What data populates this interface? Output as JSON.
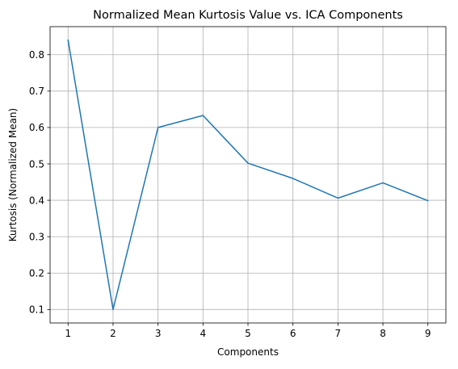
{
  "chart_data": {
    "type": "line",
    "title": "Normalized Mean Kurtosis Value vs. ICA Components",
    "xlabel": "Components",
    "ylabel": "Kurtosis (Normalized Mean)",
    "x": [
      1,
      2,
      3,
      4,
      5,
      6,
      7,
      8,
      9
    ],
    "series": [
      {
        "name": "Normalized Mean Kurtosis",
        "color": "#1f77b4",
        "values": [
          0.84,
          0.1,
          0.6,
          0.633,
          0.502,
          0.46,
          0.406,
          0.448,
          0.399
        ]
      }
    ],
    "xlim": [
      0.6,
      9.4
    ],
    "ylim": [
      0.063,
      0.877
    ],
    "xticks": [
      1,
      2,
      3,
      4,
      5,
      6,
      7,
      8,
      9
    ],
    "xtick_labels": [
      "1",
      "2",
      "3",
      "4",
      "5",
      "6",
      "7",
      "8",
      "9"
    ],
    "yticks": [
      0.1,
      0.2,
      0.3,
      0.4,
      0.5,
      0.6,
      0.7,
      0.8
    ],
    "ytick_labels": [
      "0.1",
      "0.2",
      "0.3",
      "0.4",
      "0.5",
      "0.6",
      "0.7",
      "0.8"
    ],
    "grid": true,
    "legend": "none"
  }
}
